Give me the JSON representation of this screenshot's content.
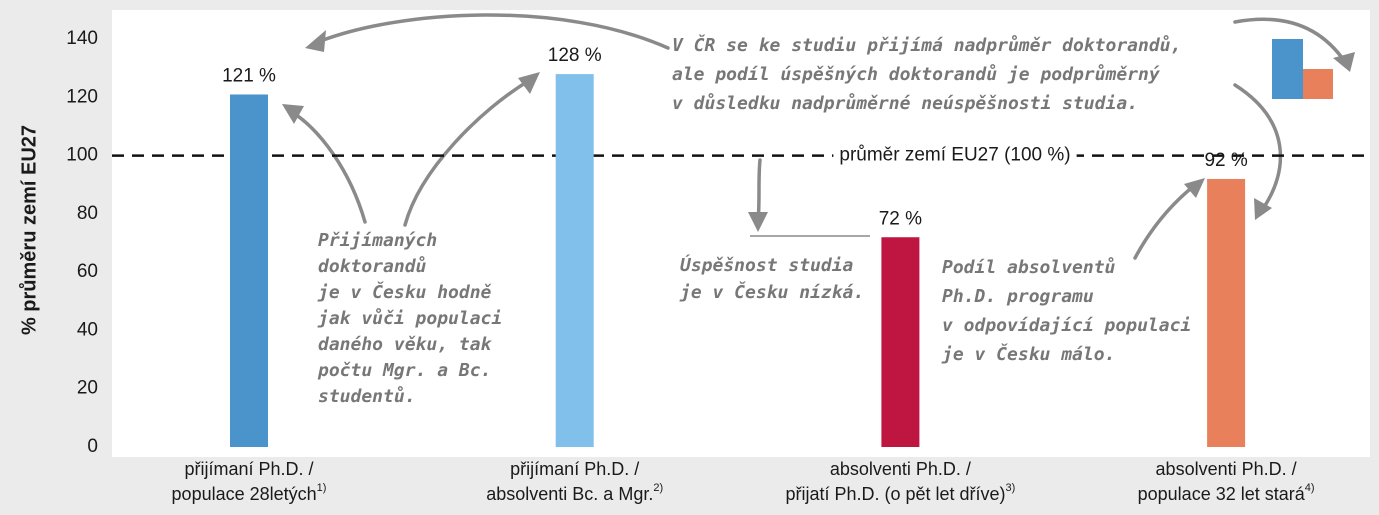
{
  "chart_data": {
    "type": "bar",
    "y_label": "% průměru zemí EU27",
    "categories": [
      [
        "přijímaní Ph.D. /",
        "populace 28letých"
      ],
      [
        "přijímaní Ph.D. /",
        "absolventi Bc. a Mgr."
      ],
      [
        "absolventi Ph.D. /",
        "přijatí Ph.D. (o pět let dříve)"
      ],
      [
        "absolventi Ph.D. /",
        "populace 32 let stará"
      ]
    ],
    "footnotes": [
      "1)",
      "2)",
      "3)",
      "4)"
    ],
    "values": [
      121,
      128,
      72,
      92
    ],
    "value_labels": [
      "121 %",
      "128 %",
      "72 %",
      "92 %"
    ],
    "colors": [
      "#4a94cb",
      "#80c0ea",
      "#be1541",
      "#e8815b"
    ],
    "ylim": [
      0,
      150
    ],
    "yticks": [
      0,
      20,
      40,
      60,
      80,
      100,
      120,
      140
    ],
    "reference_line": {
      "value": 100,
      "label": "průměr zemí EU27 (100 %)"
    },
    "annotations": [
      [
        "Přijímaných",
        "doktorandů",
        "je v Česku hodně",
        "jak vůči populaci",
        "daného věku, tak",
        "počtu Mgr. a Bc.",
        "studentů."
      ],
      [
        "Úspěšnost studia",
        "je v Česku nízká."
      ],
      [
        "Podíl absolventů",
        "Ph.D. programu",
        "v odpovídající populaci",
        "je v Česku málo."
      ],
      [
        "V ČR se ke studiu přijímá nadprůměr doktorandů,",
        "ale podíl úspěšných doktorandů je podprůměrný",
        "v důsledku nadprůměrné neúspěšnosti studia."
      ]
    ]
  }
}
